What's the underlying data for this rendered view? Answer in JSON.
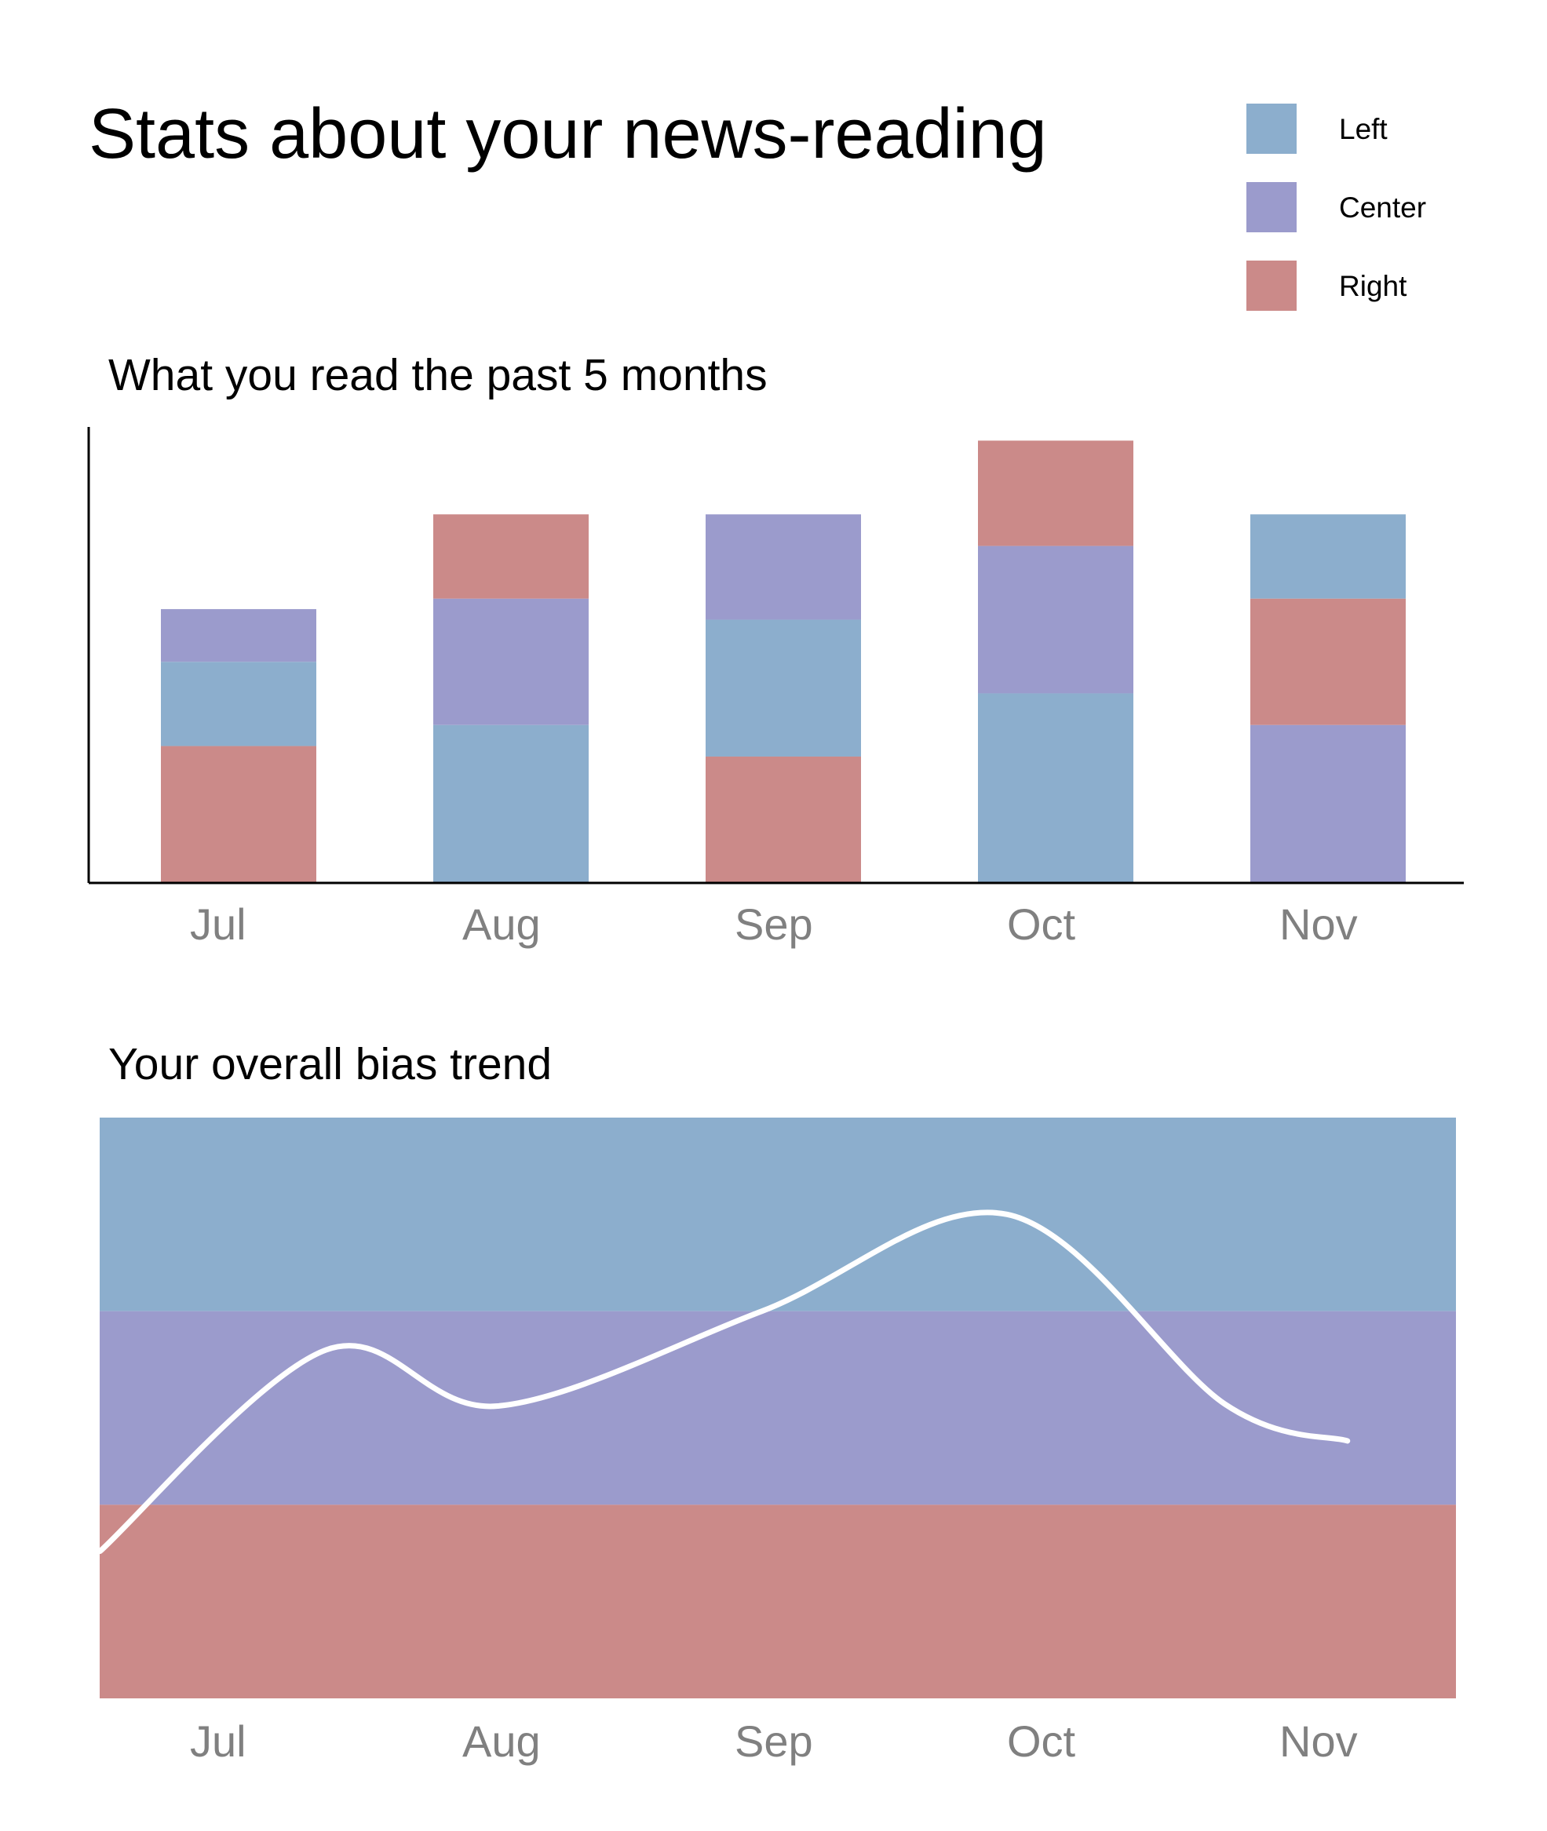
{
  "page": {
    "title": "Stats about your news-reading"
  },
  "legend": [
    {
      "label": "Left",
      "color": "#8caecd"
    },
    {
      "label": "Center",
      "color": "#9b9bcc"
    },
    {
      "label": "Right",
      "color": "#cb8a89"
    }
  ],
  "chart_data": [
    {
      "type": "bar",
      "stacked": true,
      "title": "What you read the past 5 months",
      "categories": [
        "Jul",
        "Aug",
        "Sep",
        "Oct",
        "Nov"
      ],
      "ylim": [
        0,
        4.3
      ],
      "y_axis_ticks": false,
      "stacks": [
        [
          {
            "series": "Right",
            "value": 1.3
          },
          {
            "series": "Left",
            "value": 0.8
          },
          {
            "series": "Center",
            "value": 0.5
          }
        ],
        [
          {
            "series": "Left",
            "value": 1.5
          },
          {
            "series": "Center",
            "value": 1.2
          },
          {
            "series": "Right",
            "value": 0.8
          }
        ],
        [
          {
            "series": "Right",
            "value": 1.2
          },
          {
            "series": "Left",
            "value": 1.3
          },
          {
            "series": "Center",
            "value": 1.0
          }
        ],
        [
          {
            "series": "Left",
            "value": 1.8
          },
          {
            "series": "Center",
            "value": 1.4
          },
          {
            "series": "Right",
            "value": 1.0
          }
        ],
        [
          {
            "series": "Center",
            "value": 1.5
          },
          {
            "series": "Right",
            "value": 1.2
          },
          {
            "series": "Left",
            "value": 0.8
          }
        ]
      ]
    },
    {
      "type": "line",
      "title": "Your overall bias trend",
      "categories": [
        "Jul",
        "Aug",
        "Sep",
        "Oct",
        "Nov"
      ],
      "bands": [
        {
          "name": "Left",
          "from": 2,
          "to": 3,
          "color": "#8caecd"
        },
        {
          "name": "Center",
          "from": 1,
          "to": 2,
          "color": "#9b9bcc"
        },
        {
          "name": "Right",
          "from": 0,
          "to": 1,
          "color": "#cb8a89"
        }
      ],
      "ylim": [
        0,
        3
      ],
      "line_color": "#ffffff",
      "points": [
        {
          "x": -0.33,
          "y": 0.76
        },
        {
          "x": 0.5,
          "y": 1.8
        },
        {
          "x": 1.13,
          "y": 1.51
        },
        {
          "x": 2.1,
          "y": 2.0
        },
        {
          "x": 3.0,
          "y": 2.5
        },
        {
          "x": 3.8,
          "y": 1.52
        },
        {
          "x": 4.25,
          "y": 1.33
        }
      ]
    }
  ]
}
